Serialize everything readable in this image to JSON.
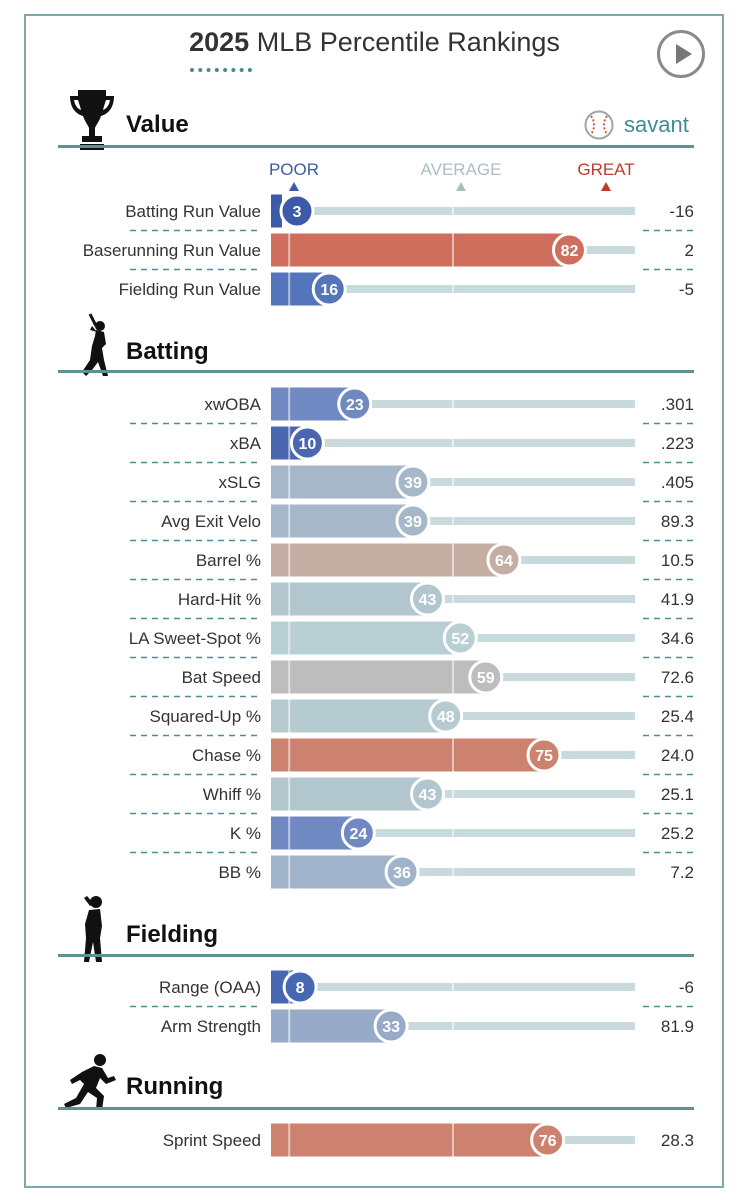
{
  "title": {
    "year": "2025",
    "rest": "MLB Percentile Rankings"
  },
  "brand": {
    "name": "savant"
  },
  "scale_labels": {
    "poor": "POOR",
    "average": "AVERAGE",
    "great": "GREAT"
  },
  "colors": {
    "frame": "#7fa8ad",
    "section_line": "#5b9296",
    "poor": "#3b5ba9",
    "great": "#c0392b",
    "average": "#aabec3",
    "track": "#c9dadd"
  },
  "sections": [
    {
      "name": "Value",
      "icon": "trophy-icon"
    },
    {
      "name": "Batting",
      "icon": "batter-icon"
    },
    {
      "name": "Fielding",
      "icon": "fielder-icon"
    },
    {
      "name": "Running",
      "icon": "runner-icon"
    }
  ],
  "chart_data": {
    "type": "bar",
    "xlim": [
      0,
      100
    ],
    "groups": [
      {
        "section": "Value",
        "metrics": [
          {
            "label": "Batting Run Value",
            "percentile": 3,
            "value": "-16",
            "color": "#3d5aa8"
          },
          {
            "label": "Baserunning Run Value",
            "percentile": 82,
            "value": "2",
            "color": "#cf6e5d"
          },
          {
            "label": "Fielding Run Value",
            "percentile": 16,
            "value": "-5",
            "color": "#5474bb"
          }
        ]
      },
      {
        "section": "Batting",
        "metrics": [
          {
            "label": "xwOBA",
            "percentile": 23,
            "value": ".301",
            "color": "#7189c2"
          },
          {
            "label": "xBA",
            "percentile": 10,
            "value": ".223",
            "color": "#4b66b0"
          },
          {
            "label": "xSLG",
            "percentile": 39,
            "value": ".405",
            "color": "#a5b7c9"
          },
          {
            "label": "Avg Exit Velo",
            "percentile": 39,
            "value": "89.3",
            "color": "#a5b7c9"
          },
          {
            "label": "Barrel %",
            "percentile": 64,
            "value": "10.5",
            "color": "#c4aea4"
          },
          {
            "label": "Hard-Hit %",
            "percentile": 43,
            "value": "41.9",
            "color": "#b2c7cd"
          },
          {
            "label": "LA Sweet-Spot %",
            "percentile": 52,
            "value": "34.6",
            "color": "#b8cfd3"
          },
          {
            "label": "Bat Speed",
            "percentile": 59,
            "value": "72.6",
            "color": "#bdbdbd"
          },
          {
            "label": "Squared-Up %",
            "percentile": 48,
            "value": "25.4",
            "color": "#b6cbd0"
          },
          {
            "label": "Chase %",
            "percentile": 75,
            "value": "24.0",
            "color": "#cd8270"
          },
          {
            "label": "Whiff %",
            "percentile": 43,
            "value": "25.1",
            "color": "#b2c7cd"
          },
          {
            "label": "K %",
            "percentile": 24,
            "value": "25.2",
            "color": "#7189c2"
          },
          {
            "label": "BB %",
            "percentile": 36,
            "value": "7.2",
            "color": "#9fb3ca"
          }
        ]
      },
      {
        "section": "Fielding",
        "metrics": [
          {
            "label": "Range (OAA)",
            "percentile": 8,
            "value": "-6",
            "color": "#4867b1"
          },
          {
            "label": "Arm Strength",
            "percentile": 33,
            "value": "81.9",
            "color": "#97abc9"
          }
        ]
      },
      {
        "section": "Running",
        "metrics": [
          {
            "label": "Sprint Speed",
            "percentile": 76,
            "value": "28.3",
            "color": "#cd8270"
          }
        ]
      }
    ]
  }
}
